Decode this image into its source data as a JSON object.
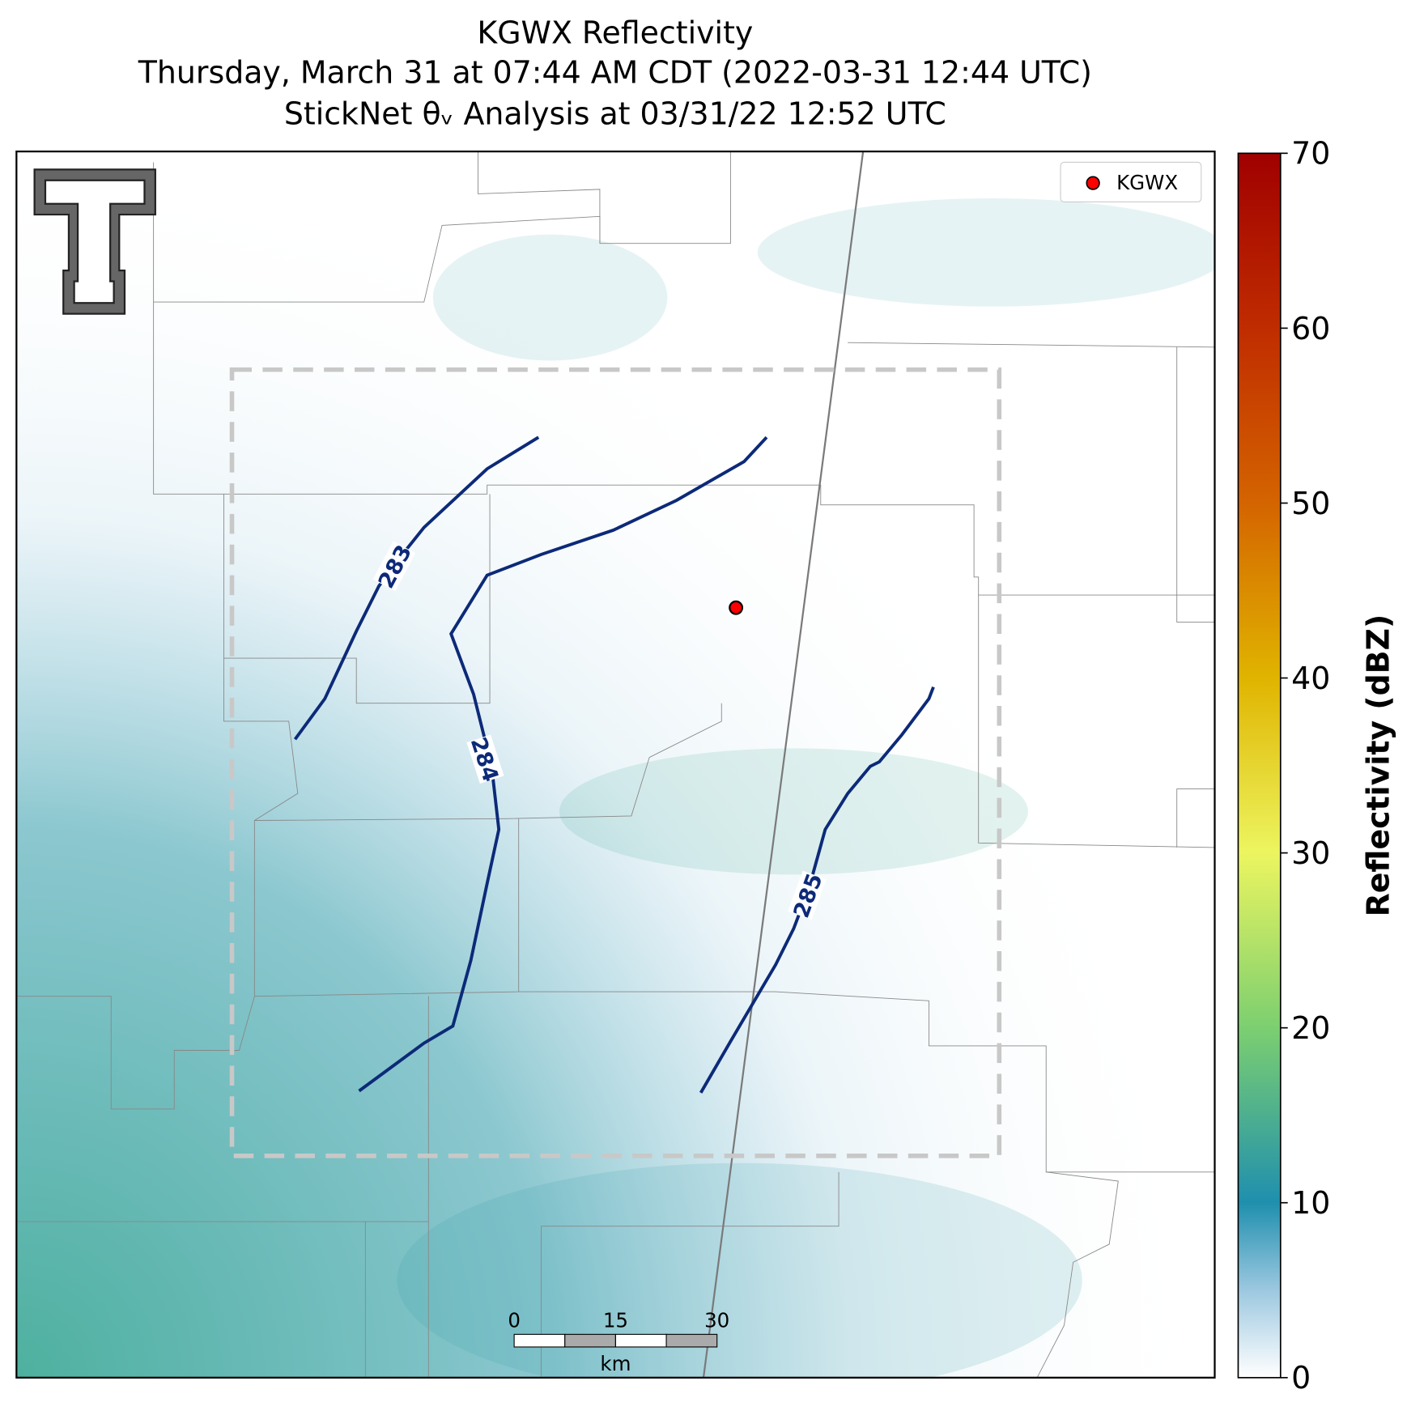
{
  "title": [
    "KGWX Reflectivity",
    "Thursday, March 31 at 07:44 AM CDT (2022-03-31 12:44 UTC)",
    "StickNet θᵥ Analysis at 03/31/22 12:52 UTC"
  ],
  "legend": {
    "label": "KGWX",
    "marker_color": "#ff0000"
  },
  "contours": {
    "color": "#0c2a78",
    "levels": [
      283,
      284,
      285
    ]
  },
  "scale_bar": {
    "ticks": [
      0,
      15,
      30
    ],
    "unit": "km"
  },
  "colorbar": {
    "label": "Reflectivity (dBZ)",
    "ylim": [
      0,
      70
    ],
    "yticks": [
      0,
      10,
      20,
      30,
      40,
      50,
      60,
      70
    ],
    "colors": [
      [
        0,
        "#ffffff"
      ],
      [
        5,
        "#9cc8e0"
      ],
      [
        10,
        "#1f8fae"
      ],
      [
        20,
        "#7ccf70"
      ],
      [
        30,
        "#ecf560"
      ],
      [
        40,
        "#e0b400"
      ],
      [
        50,
        "#d46400"
      ],
      [
        60,
        "#c02c00"
      ],
      [
        70,
        "#a00000"
      ]
    ]
  }
}
